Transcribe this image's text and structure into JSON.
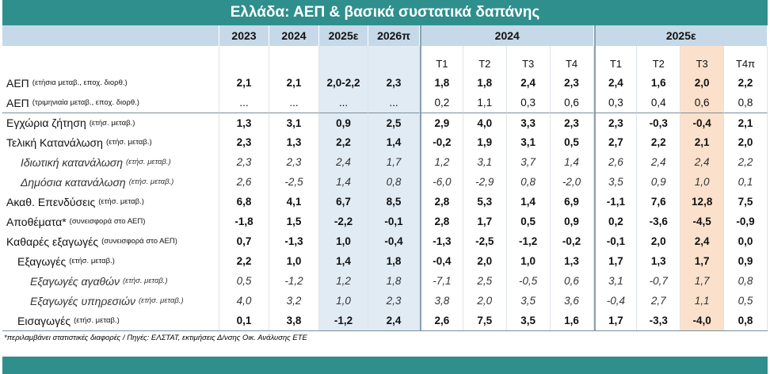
{
  "title": "Ελλάδα: ΑΕΠ & βασικά συστατικά δαπάνης",
  "table": {
    "annual_headers": [
      "2023",
      "2024",
      "2025ε",
      "2026π"
    ],
    "quarter_groups": [
      {
        "year": "2024",
        "quarters": [
          "T1",
          "T2",
          "T3",
          "T4"
        ]
      },
      {
        "year": "2025ε",
        "quarters": [
          "T1",
          "T2",
          "T3",
          "T4π"
        ]
      }
    ],
    "rows": [
      {
        "label": "ΑΕΠ",
        "note": "(ετήσια μεταβ., εποχ. διορθ.)",
        "values": [
          "2,1",
          "2,1",
          "2,0-2,2",
          "2,3",
          "1,8",
          "1,8",
          "2,4",
          "2,3",
          "2,4",
          "1,6",
          "2,0",
          "2,2"
        ]
      },
      {
        "label": "ΑΕΠ",
        "note": "(τριμηνιαία μεταβ., εποχ. διορθ.)",
        "values": [
          "...",
          "...",
          "...",
          "...",
          "0,2",
          "1,1",
          "0,3",
          "0,6",
          "0,3",
          "0,4",
          "0,6",
          "0,8"
        ]
      },
      {
        "label": "Εγχώρια ζήτηση",
        "note": "(ετήσ. μεταβ.)",
        "values": [
          "1,3",
          "3,1",
          "0,9",
          "2,5",
          "2,9",
          "4,0",
          "3,3",
          "2,3",
          "2,3",
          "-0,3",
          "-0,4",
          "2,1"
        ]
      },
      {
        "label": "Τελική Κατανάλωση",
        "note": "(ετήσ. μεταβ.)",
        "values": [
          "2,3",
          "1,3",
          "2,2",
          "1,4",
          "-0,2",
          "1,9",
          "3,1",
          "0,5",
          "2,7",
          "2,2",
          "2,1",
          "2,0"
        ]
      },
      {
        "label": "Ιδιωτική κατανάλωση",
        "note": "(ετήσ. μεταβ.)",
        "values": [
          "2,3",
          "2,3",
          "2,4",
          "1,7",
          "1,2",
          "3,1",
          "3,7",
          "1,4",
          "2,6",
          "2,4",
          "2,4",
          "2,2"
        ]
      },
      {
        "label": "Δημόσια κατανάλωση",
        "note": "(ετήσ. μεταβ.)",
        "values": [
          "2,6",
          "-2,5",
          "1,4",
          "0,8",
          "-6,0",
          "-2,9",
          "0,8",
          "-2,0",
          "3,5",
          "0,9",
          "1,0",
          "0,1"
        ]
      },
      {
        "label": "Ακαθ. Επενδύσεις",
        "note": "(ετήσ. μεταβ.)",
        "values": [
          "6,8",
          "4,1",
          "6,7",
          "8,5",
          "2,8",
          "5,3",
          "1,4",
          "6,9",
          "-1,1",
          "7,6",
          "12,8",
          "7,5"
        ]
      },
      {
        "label": "Αποθέματα*",
        "note": "(συνεισφορά στο ΑΕΠ)",
        "values": [
          "-1,8",
          "1,5",
          "-2,2",
          "-0,1",
          "2,8",
          "1,7",
          "0,5",
          "0,9",
          "0,2",
          "-3,6",
          "-4,5",
          "-0,9"
        ]
      },
      {
        "label": "Καθαρές εξαγωγές",
        "note": "(συνεισφορά στο ΑΕΠ)",
        "values": [
          "0,7",
          "-1,3",
          "1,0",
          "-0,4",
          "-1,3",
          "-2,5",
          "-1,2",
          "-0,2",
          "-0,1",
          "2,0",
          "2,4",
          "0,0"
        ]
      },
      {
        "label": "Εξαγωγές",
        "note": "(ετήσ. μεταβ.)",
        "values": [
          "2,2",
          "1,0",
          "1,4",
          "1,8",
          "-0,4",
          "2,0",
          "1,0",
          "1,3",
          "1,7",
          "1,3",
          "1,7",
          "0,9"
        ]
      },
      {
        "label": "Εξαγωγές αγαθών",
        "note": "(ετήσ. μεταβ.)",
        "values": [
          "0,5",
          "-1,2",
          "1,2",
          "1,8",
          "-7,1",
          "2,5",
          "-0,5",
          "0,6",
          "3,1",
          "-0,7",
          "1,7",
          "0,8"
        ]
      },
      {
        "label": "Εξαγωγές υπηρεσιών",
        "note": "(ετήσ. μεταβ.)",
        "values": [
          "4,0",
          "3,2",
          "1,0",
          "2,3",
          "3,8",
          "2,0",
          "3,5",
          "3,6",
          "-0,4",
          "2,7",
          "1,1",
          "0,5"
        ]
      },
      {
        "label": "Εισαγωγές",
        "note": "(ετήσ. μεταβ.)",
        "values": [
          "0,1",
          "3,8",
          "-1,2",
          "2,4",
          "2,6",
          "7,5",
          "3,5",
          "1,6",
          "1,7",
          "-3,3",
          "-4,0",
          "0,8"
        ]
      }
    ]
  },
  "footnote": "*περιλαμβάνει στατιστικές διαφορές / Πηγές: ΕΛΣΤΑΤ, εκτιμήσεις Δ/νσης Οικ. Ανάλυσης ΕΤΕ"
}
